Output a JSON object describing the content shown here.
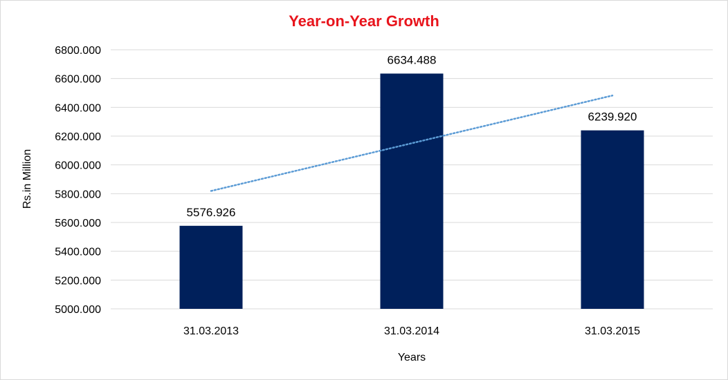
{
  "chart_data": {
    "type": "bar",
    "title": "Year-on-Year Growth",
    "xlabel": "Years",
    "ylabel": "Rs.in Million",
    "categories": [
      "31.03.2013",
      "31.03.2014",
      "31.03.2015"
    ],
    "values": [
      5576.926,
      6634.488,
      6239.92
    ],
    "value_labels": [
      "5576.926",
      "6634.488",
      "6239.920"
    ],
    "ylim": [
      5000,
      6800
    ],
    "yticks": [
      5000,
      5200,
      5400,
      5600,
      5800,
      6000,
      6200,
      6400,
      6600,
      6800
    ],
    "ytick_labels": [
      "5000.000",
      "5200.000",
      "5400.000",
      "5600.000",
      "5800.000",
      "6000.000",
      "6200.000",
      "6400.000",
      "6600.000",
      "6800.000"
    ],
    "grid": true,
    "legend": "none",
    "trendline": {
      "type": "linear",
      "style": "dotted",
      "color": "#5b9bd5"
    },
    "bar_color": "#00205b",
    "title_color": "#e8141c"
  }
}
